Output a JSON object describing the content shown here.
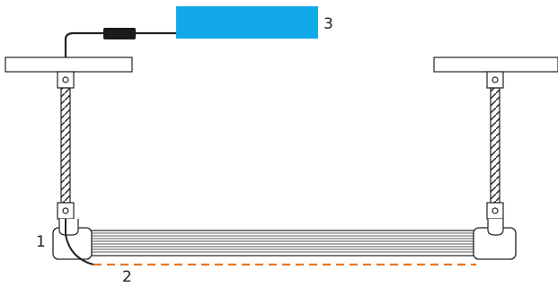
{
  "callouts": {
    "fixture": "1",
    "light_strip": "2",
    "power_unit": "3"
  },
  "colors": {
    "power_unit": "#12a9e8",
    "light_strip": "#e87722",
    "line": "#222222",
    "connector": "#1b1b1b"
  }
}
